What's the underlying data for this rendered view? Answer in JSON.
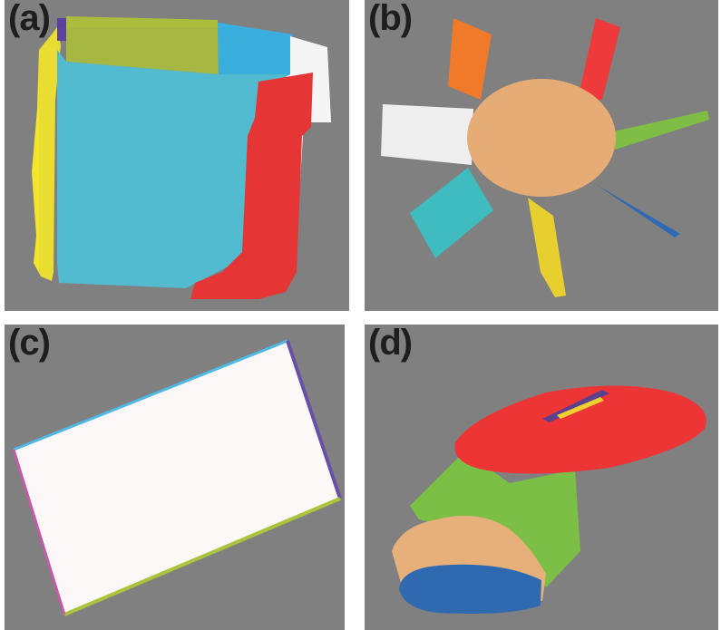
{
  "panels": [
    {
      "id": "a",
      "label": "(a)",
      "segment_colors": [
        "#f2e52c",
        "#5a3fa0",
        "#aabd3c",
        "#4fc0d6",
        "#35b4e6",
        "#ffffff",
        "#ee2f2f"
      ]
    },
    {
      "id": "b",
      "label": "(b)",
      "segment_colors": [
        "#e6ac75",
        "#f07a2a",
        "#ee3a3a",
        "#7fbe45",
        "#2f69b2",
        "#e7cf2f",
        "#3fbcc0",
        "#eeeeee"
      ]
    },
    {
      "id": "c",
      "label": "(c)",
      "segment_colors": [
        "#fdf8f8",
        "#4fb8e4",
        "#6a4fa8",
        "#aac43c",
        "#c55aa8"
      ]
    },
    {
      "id": "d",
      "label": "(d)",
      "segment_colors": [
        "#ee3535",
        "#7cbf45",
        "#e7b07a",
        "#2f6ab0",
        "#efd02f",
        "#5d3f8f"
      ]
    }
  ]
}
